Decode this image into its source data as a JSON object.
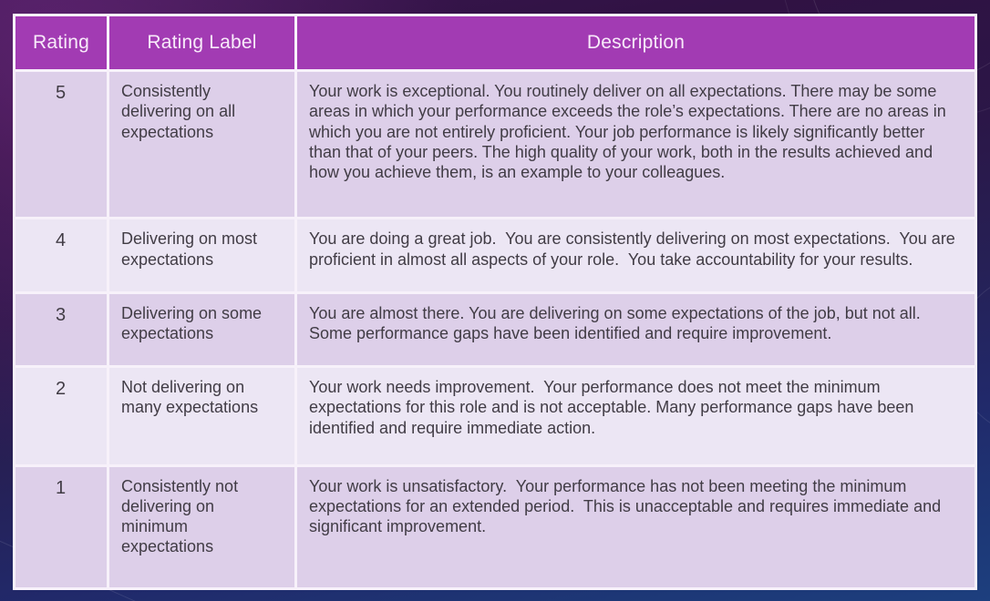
{
  "table": {
    "columns": [
      {
        "label": "Rating"
      },
      {
        "label": "Rating Label"
      },
      {
        "label": "Description"
      }
    ],
    "rows": [
      {
        "rating": "5",
        "label": "Consistently delivering on all expectations",
        "description": "Your work is exceptional. You routinely deliver on all expectations. There may be some areas in which your performance exceeds the role’s expectations. There are no areas in which you are not entirely proficient. Your job performance is likely significantly better than that of your peers. The high quality of your work, both in the results achieved and how you achieve them, is an example to your colleagues."
      },
      {
        "rating": "4",
        "label": "Delivering on most expectations",
        "description": "You are doing a great job.  You are consistently delivering on most expectations.  You are proficient in almost all aspects of your role.  You take accountability for your results."
      },
      {
        "rating": "3",
        "label": "Delivering on some expectations",
        "description": "You are almost there. You are delivering on some expectations of the job, but not all. Some performance gaps have been identified and require improvement."
      },
      {
        "rating": "2",
        "label": "Not delivering on many expectations",
        "description": "Your work needs improvement.  Your performance does not meet the minimum expectations for this role and is not acceptable. Many performance gaps have been identified and require immediate action."
      },
      {
        "rating": "1",
        "label": "Consistently not delivering on minimum expectations",
        "description": "Your work is unsatisfactory.  Your performance has not been meeting the minimum expectations for an extended period.  This is unacceptable and requires immediate and significant improvement."
      }
    ],
    "colors": {
      "header_bg": "#a23bb3",
      "header_text": "#f8eafa",
      "row_odd_bg": "#ddcfe9",
      "row_even_bg": "#ece6f4",
      "body_text": "#413c45",
      "grid": "#f7f1fa",
      "page_top": "#321245",
      "page_bottom": "#1d3d7c"
    }
  }
}
